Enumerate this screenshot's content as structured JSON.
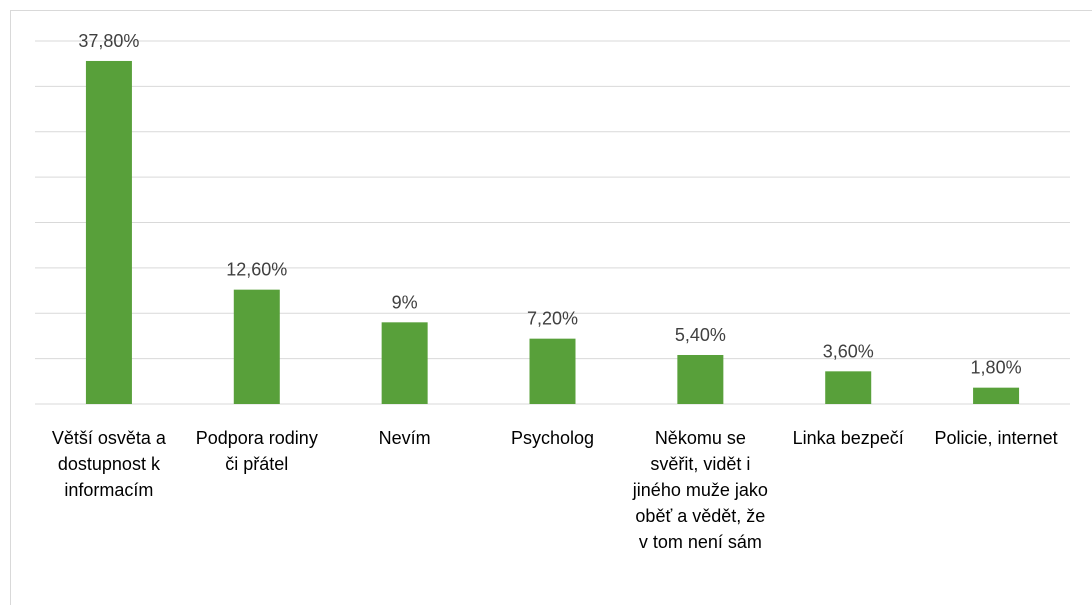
{
  "chart_data": {
    "type": "bar",
    "categories": [
      "Větší osvěta a dostupnost k informacím",
      "Podpora rodiny či přátel",
      "Nevím",
      "Psycholog",
      "Někomu se svěřit, vidět i jiného muže jako oběť a vědět, že v tom není sám",
      "Linka bezpečí",
      "Policie, internet"
    ],
    "values": [
      37.8,
      12.6,
      9,
      7.2,
      5.4,
      3.6,
      1.8
    ],
    "value_labels": [
      "37,80%",
      "12,60%",
      "9%",
      "7,20%",
      "5,40%",
      "3,60%",
      "1,80%"
    ],
    "color": "#58a03a",
    "ylim": [
      0,
      40
    ],
    "yticks": [
      0,
      5,
      10,
      15,
      20,
      25,
      30,
      35,
      40
    ],
    "grid": true
  }
}
